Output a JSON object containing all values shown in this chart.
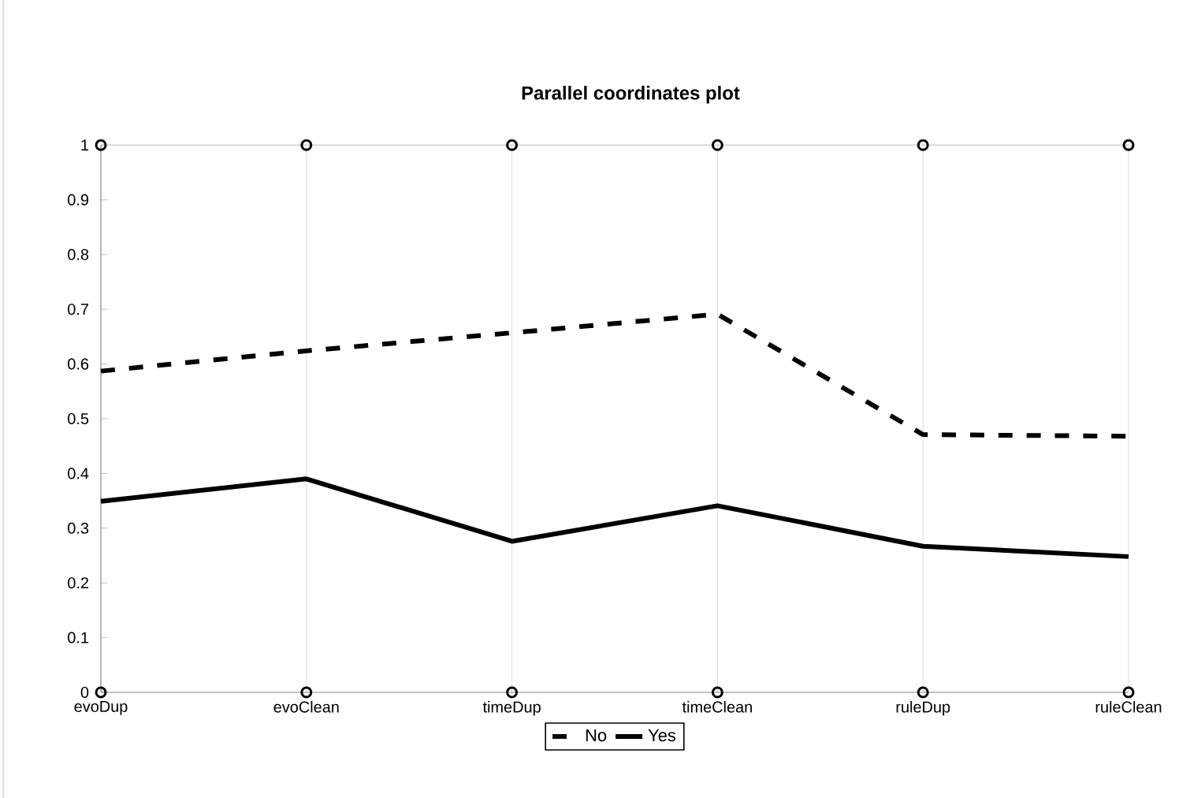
{
  "chart_data": {
    "type": "line",
    "title": "Parallel coordinates plot",
    "categories": [
      "evoDup",
      "evoClean",
      "timeDup",
      "timeClean",
      "ruleDup",
      "ruleClean"
    ],
    "series": [
      {
        "name": "No",
        "color": "#000000",
        "line_style": "dashed",
        "marker": "none",
        "values": [
          0.587,
          0.624,
          0.657,
          0.691,
          0.471,
          0.468
        ]
      },
      {
        "name": "Yes",
        "color": "#000000",
        "line_style": "solid",
        "marker": "none",
        "values": [
          0.349,
          0.39,
          0.276,
          0.341,
          0.267,
          0.248
        ]
      },
      {
        "type": "scatter",
        "color": "#000000",
        "marker": "circle",
        "values": [
          1,
          1,
          1,
          1,
          1,
          1
        ]
      },
      {
        "type": "scatter",
        "color": "#000000",
        "marker": "circle",
        "values": [
          0,
          0,
          0,
          0,
          0,
          0
        ]
      }
    ],
    "ylim": [
      0,
      1
    ],
    "yticks": [
      0,
      0.1,
      0.2,
      0.3,
      0.4,
      0.5,
      0.6,
      0.7,
      0.8,
      0.9,
      1
    ],
    "grid": "x",
    "legend": "bottom"
  }
}
